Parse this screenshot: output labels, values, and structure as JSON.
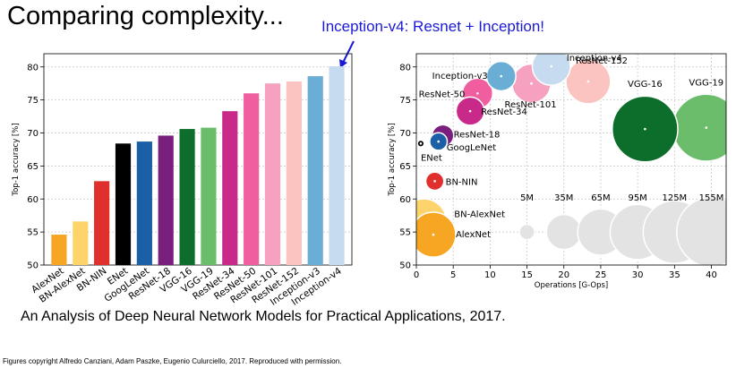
{
  "title": "Comparing complexity...",
  "annotation": "Inception-v4: Resnet + Inception!",
  "caption": "An Analysis of Deep Neural Network Models for Practical Applications, 2017.",
  "credit": "Figures copyright Alfredo Canziani, Adam Paszke, Eugenio Culurciello, 2017. Reproduced with permission.",
  "chart_data": [
    {
      "type": "bar",
      "title": "",
      "xlabel": "",
      "ylabel": "Top-1 accuracy [%]",
      "ylim": [
        50,
        82
      ],
      "yticks": [
        50,
        55,
        60,
        65,
        70,
        75,
        80
      ],
      "grid": true,
      "categories": [
        "AlexNet",
        "BN-AlexNet",
        "BN-NIN",
        "ENet",
        "GoogLeNet",
        "ResNet-18",
        "VGG-16",
        "VGG-19",
        "ResNet-34",
        "ResNet-50",
        "ResNet-101",
        "ResNet-152",
        "Inception-v3",
        "Inception-v4"
      ],
      "values": [
        54.6,
        56.6,
        62.7,
        68.4,
        68.7,
        69.6,
        70.6,
        70.8,
        73.3,
        76.0,
        77.5,
        77.8,
        78.6,
        80.1
      ],
      "colors": [
        "#f6a623",
        "#fdd36b",
        "#e0302d",
        "#000000",
        "#1b5fa6",
        "#7b1f7f",
        "#0d6e2c",
        "#6bbd6b",
        "#c92a8a",
        "#f05ea0",
        "#f7a1c0",
        "#fbc4c0",
        "#6aaed6",
        "#c6dbef"
      ]
    },
    {
      "type": "scatter",
      "title": "",
      "xlabel": "Operations [G-Ops]",
      "ylabel": "Top-1 accuracy [%]",
      "xlim": [
        0,
        42
      ],
      "ylim": [
        50,
        82
      ],
      "xticks": [
        0,
        5,
        10,
        15,
        20,
        25,
        30,
        35,
        40
      ],
      "yticks": [
        50,
        55,
        60,
        65,
        70,
        75,
        80
      ],
      "grid": true,
      "points": [
        {
          "label": "AlexNet",
          "x": 2.3,
          "y": 54.6,
          "params_m": 61,
          "color": "#f6a623"
        },
        {
          "label": "BN-AlexNet",
          "x": 1.0,
          "y": 56.6,
          "params_m": 62,
          "color": "#fdd36b"
        },
        {
          "label": "BN-NIN",
          "x": 2.5,
          "y": 62.7,
          "params_m": 7.6,
          "color": "#e0302d"
        },
        {
          "label": "ENet",
          "x": 0.6,
          "y": 68.4,
          "params_m": 0.37,
          "color": "#000000"
        },
        {
          "label": "GoogLeNet",
          "x": 3.0,
          "y": 68.7,
          "params_m": 7,
          "color": "#1b5fa6"
        },
        {
          "label": "ResNet-18",
          "x": 3.6,
          "y": 69.6,
          "params_m": 11.7,
          "color": "#7b1f7f"
        },
        {
          "label": "ResNet-34",
          "x": 7.3,
          "y": 73.3,
          "params_m": 21.8,
          "color": "#c92a8a"
        },
        {
          "label": "ResNet-50",
          "x": 8.3,
          "y": 76.0,
          "params_m": 25.6,
          "color": "#f05ea0"
        },
        {
          "label": "Inception-v3",
          "x": 11.5,
          "y": 78.6,
          "params_m": 23.8,
          "color": "#6aaed6"
        },
        {
          "label": "ResNet-101",
          "x": 15.6,
          "y": 77.5,
          "params_m": 44.5,
          "color": "#f7a1c0"
        },
        {
          "label": "Inception-v4",
          "x": 18.3,
          "y": 80.1,
          "params_m": 42.7,
          "color": "#c6dbef"
        },
        {
          "label": "ResNet-152",
          "x": 23.3,
          "y": 77.8,
          "params_m": 60.2,
          "color": "#fbc4c0"
        },
        {
          "label": "VGG-16",
          "x": 31.0,
          "y": 70.6,
          "params_m": 138,
          "color": "#0d6e2c"
        },
        {
          "label": "VGG-19",
          "x": 39.3,
          "y": 70.8,
          "params_m": 144,
          "color": "#6bbd6b"
        }
      ],
      "size_legend": [
        {
          "label": "5M",
          "x": 15.0,
          "y": 55.0,
          "params_m": 5
        },
        {
          "label": "35M",
          "x": 20.0,
          "y": 55.0,
          "params_m": 35
        },
        {
          "label": "65M",
          "x": 25.0,
          "y": 55.0,
          "params_m": 65
        },
        {
          "label": "95M",
          "x": 30.0,
          "y": 55.0,
          "params_m": 95
        },
        {
          "label": "125M",
          "x": 35.0,
          "y": 55.0,
          "params_m": 125
        },
        {
          "label": "155M",
          "x": 40.0,
          "y": 55.0,
          "params_m": 155
        }
      ]
    }
  ]
}
